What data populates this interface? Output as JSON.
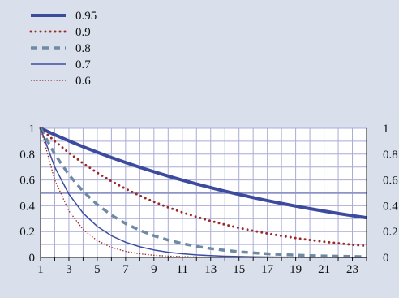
{
  "chart_data": {
    "type": "line",
    "x": [
      1,
      2,
      3,
      4,
      5,
      6,
      7,
      8,
      9,
      10,
      11,
      12,
      13,
      14,
      15,
      16,
      17,
      18,
      19,
      20,
      21,
      22,
      23,
      24
    ],
    "series": [
      {
        "name": "0.95",
        "values": [
          1,
          0.95,
          0.9025,
          0.857375,
          0.814506,
          0.773781,
          0.735092,
          0.698337,
          0.66342,
          0.630249,
          0.598737,
          0.5688,
          0.54036,
          0.513342,
          0.487675,
          0.463291,
          0.440127,
          0.41812,
          0.397214,
          0.377354,
          0.358486,
          0.340562,
          0.323534,
          0.307357
        ],
        "color": "#3c4b9e",
        "style": "solid-thick"
      },
      {
        "name": "0.9",
        "values": [
          1,
          0.9,
          0.81,
          0.729,
          0.6561,
          0.59049,
          0.531441,
          0.478297,
          0.430467,
          0.38742,
          0.348678,
          0.313811,
          0.28243,
          0.254187,
          0.228768,
          0.205891,
          0.185302,
          0.166772,
          0.150095,
          0.135085,
          0.121577,
          0.109419,
          0.098477,
          0.088629
        ],
        "color": "#9b2a2a",
        "style": "dotted-thick"
      },
      {
        "name": "0.8",
        "values": [
          1,
          0.8,
          0.64,
          0.512,
          0.4096,
          0.32768,
          0.262144,
          0.209715,
          0.167772,
          0.134218,
          0.107374,
          0.085899,
          0.068719,
          0.054976,
          0.04398,
          0.035184,
          0.028147,
          0.022518,
          0.018014,
          0.014412,
          0.011529,
          0.009223,
          0.007379,
          0.005903
        ],
        "color": "#6f8aa3",
        "style": "dashed-thick"
      },
      {
        "name": "0.7",
        "values": [
          1,
          0.7,
          0.49,
          0.343,
          0.2401,
          0.16807,
          0.117649,
          0.082354,
          0.057648,
          0.040354,
          0.028248,
          0.019773,
          0.013841,
          0.009689,
          0.006782,
          0.004748,
          0.003323,
          0.002326,
          0.001628,
          0.00114,
          0.000798,
          0.000559,
          0.000391,
          0.000274
        ],
        "color": "#3c4b9e",
        "style": "solid-thin"
      },
      {
        "name": "0.6",
        "values": [
          1,
          0.6,
          0.36,
          0.216,
          0.1296,
          0.07776,
          0.046656,
          0.02799,
          0.016796,
          0.010078,
          0.006047,
          0.003628,
          0.002177,
          0.001306,
          0.000784,
          0.00047,
          0.000282,
          0.000169,
          0.000102,
          6.1e-05,
          3.7e-05,
          2.2e-05,
          1.3e-05,
          8e-06
        ],
        "color": "#9b2a2a",
        "style": "dotted-thin"
      }
    ],
    "reference_line": {
      "y": 0.5,
      "color": "#8f94c6"
    },
    "xlim": [
      1,
      24
    ],
    "ylim": [
      0,
      1
    ],
    "x_tick_labels": [
      "1",
      "3",
      "5",
      "7",
      "9",
      "11",
      "13",
      "15",
      "17",
      "19",
      "21",
      "23"
    ],
    "y_tick_labels_left": [
      "0",
      "0.2",
      "0.4",
      "0.6",
      "0.8",
      "1"
    ],
    "y_tick_labels_right": [
      "0",
      "0.2",
      "0.4",
      "0.6",
      "0.8",
      "1"
    ],
    "grid": true,
    "legend_position": "top-left",
    "colors": {
      "background": "#d9e0ec",
      "plot_background": "#ffffff",
      "grid": "#a9acd6",
      "axis": "#111111"
    }
  }
}
